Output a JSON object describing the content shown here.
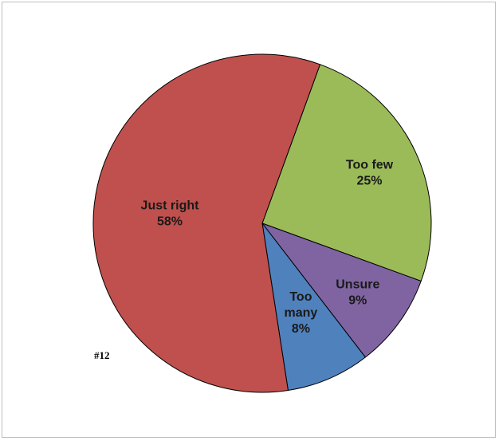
{
  "chart_data": {
    "type": "pie",
    "note": "#12",
    "slices": [
      {
        "name": "Too few",
        "value": 25,
        "label_lines": [
          "Too few",
          "25%"
        ],
        "color": "#9bbb59"
      },
      {
        "name": "Unsure",
        "value": 9,
        "label_lines": [
          "Unsure",
          "9%"
        ],
        "color": "#8064a2"
      },
      {
        "name": "Too many",
        "value": 8,
        "label_lines": [
          "Too",
          "many",
          "8%"
        ],
        "color": "#4f81bd"
      },
      {
        "name": "Just right",
        "value": 58,
        "label_lines": [
          "Just right",
          "58%"
        ],
        "color": "#c0504d"
      }
    ],
    "start_angle_deg": 20,
    "direction": "clockwise",
    "slice_border_color": "#000000"
  }
}
